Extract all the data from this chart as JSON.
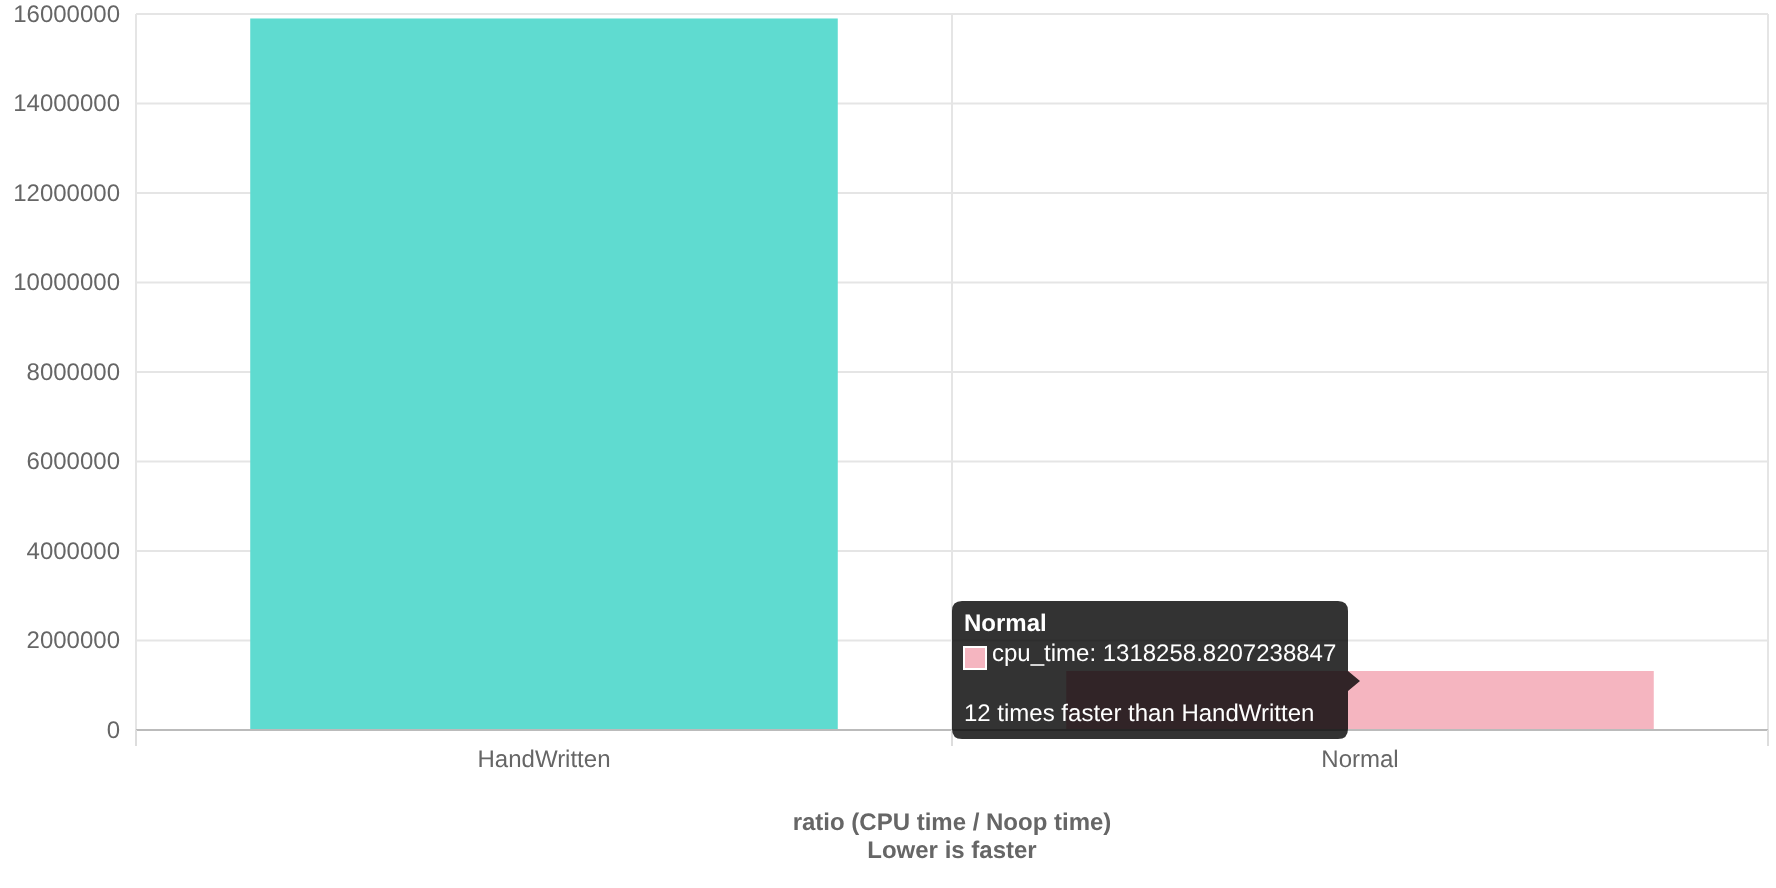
{
  "chart_data": {
    "type": "bar",
    "categories": [
      "HandWritten",
      "Normal"
    ],
    "series": [
      {
        "colors": [
          "#5fdbd0",
          "#f5b5c0"
        ],
        "values": [
          15900000,
          1318258.8207238847
        ]
      }
    ],
    "xlabel": "ratio (CPU time / Noop time)\nLower is faster",
    "ylim": [
      0,
      16000000
    ],
    "yticks": [
      0,
      2000000,
      4000000,
      6000000,
      8000000,
      10000000,
      12000000,
      14000000,
      16000000
    ],
    "grid": true,
    "annotations": [
      "Normal",
      "cpu_time: 1318258.8207238847",
      {
        "text": "12 times faster than HandWritten",
        "x": "Normal",
        "y": 1318258.8207238847
      }
    ]
  }
}
